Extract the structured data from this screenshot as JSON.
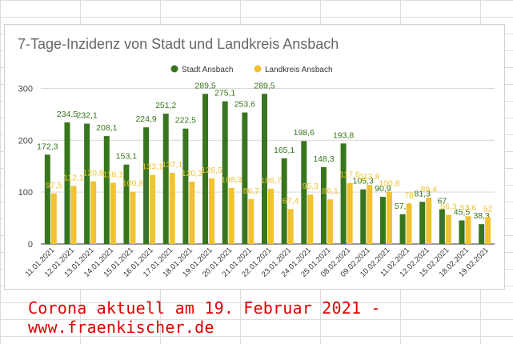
{
  "chart_data": {
    "type": "bar",
    "title": "7-Tage-Inzidenz von Stadt und Landkreis Ansbach",
    "categories": [
      "11.01.2021",
      "12.01.2021",
      "13.01.2021",
      "14.01.2021",
      "15.01.2021",
      "16.01.2021",
      "17.01.2021",
      "18.01.2021",
      "19.01.2021",
      "20.01.2021",
      "21.01.2021",
      "22.01.2021",
      "23.01.2021",
      "24.01.2021",
      "25.01.2021",
      "08.02.2021",
      "09.02.2021",
      "10.02.2021",
      "11.02.2021",
      "12.02.2021",
      "15.02.2021",
      "18.02.2021",
      "19.02.2021"
    ],
    "series": [
      {
        "name": "Stadt Ansbach",
        "color": "#38761d",
        "values": [
          172.3,
          234.5,
          232.1,
          208.1,
          153.1,
          224.9,
          251.2,
          222.5,
          289.5,
          275.1,
          253.6,
          289.5,
          165.1,
          198.6,
          148.3,
          193.8,
          105.3,
          90.9,
          57.4,
          81.3,
          67,
          45.5,
          38.3
        ],
        "labels": [
          "172,3",
          "234,5",
          "232,1",
          "208,1",
          "153,1",
          "224,9",
          "251,2",
          "222,5",
          "289,5",
          "275,1",
          "253,6",
          "289,5",
          "165,1",
          "198,6",
          "148,3",
          "193,8",
          "105,3",
          "90,9",
          "57,4",
          "81,3",
          "67",
          "45,5",
          "38,3"
        ]
      },
      {
        "name": "Landkreis Ansbach",
        "color": "#f1c232",
        "values": [
          97.5,
          112.1,
          120.8,
          118.1,
          100.8,
          133.1,
          137.1,
          120.3,
          126.5,
          108.3,
          86.7,
          106.7,
          67.4,
          95.3,
          86.1,
          117.6,
          113.8,
          100.8,
          78,
          89.4,
          56.3,
          53.6,
          52
        ],
        "labels": [
          "97,5",
          "112,1",
          "120,8",
          "118,1",
          "100,8",
          "133,1",
          "137,1",
          "120,3",
          "126,5",
          "108,3",
          "86,7",
          "106,7",
          "67,4",
          "95,3",
          "86,1",
          "117,6",
          "113,8",
          "100,8",
          "78",
          "89,4",
          "56,3",
          "53,6",
          "52"
        ]
      }
    ],
    "y_ticks": [
      "0",
      "100",
      "200",
      "300"
    ],
    "y_tick_values": [
      0,
      100,
      200,
      300
    ],
    "ylim": [
      0,
      310
    ],
    "grid": true,
    "legend_position": "top-center"
  },
  "caption": "Corona aktuell am 19. Februar 2021 - www.fraenkischer.de"
}
